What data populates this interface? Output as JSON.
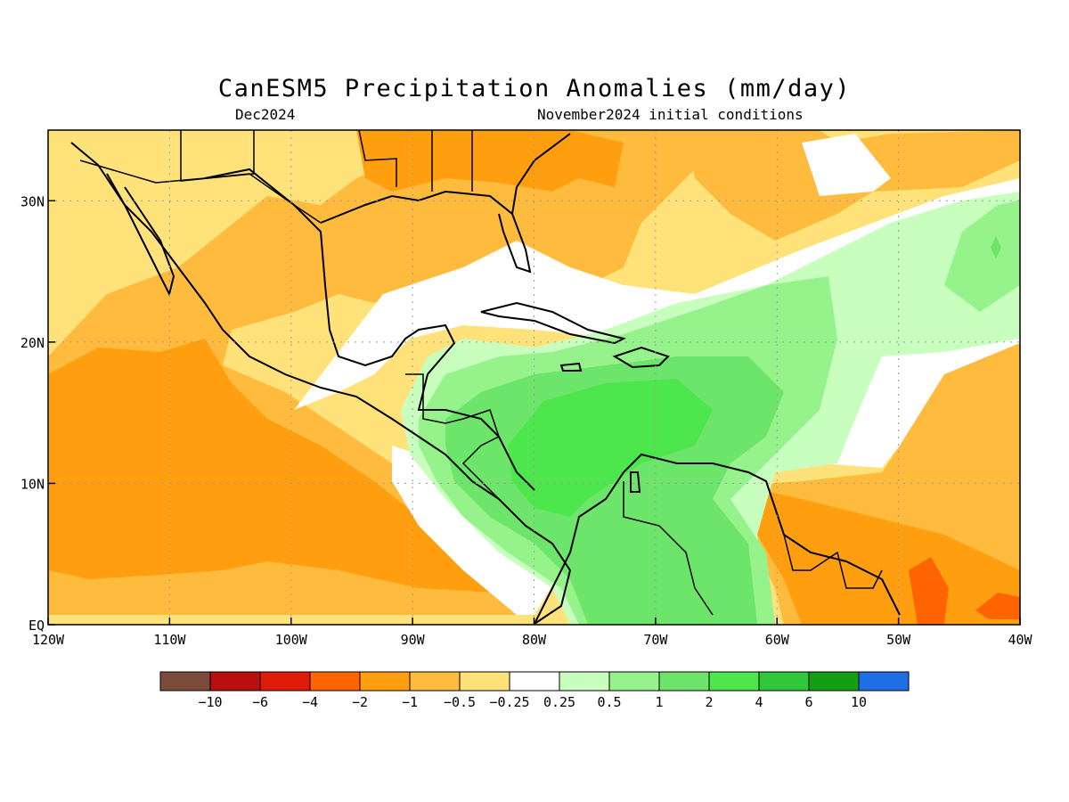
{
  "title": "CanESM5 Precipitation Anomalies (mm/day)",
  "subtitle_left": "Dec2024",
  "subtitle_right": "November2024 initial conditions",
  "map": {
    "lon_range": [
      -120,
      -40
    ],
    "lat_range": [
      0,
      35
    ],
    "lon_ticks": [
      {
        "value": -120,
        "label": "120W"
      },
      {
        "value": -110,
        "label": "110W"
      },
      {
        "value": -100,
        "label": "100W"
      },
      {
        "value": -90,
        "label": "90W"
      },
      {
        "value": -80,
        "label": "80W"
      },
      {
        "value": -70,
        "label": "70W"
      },
      {
        "value": -60,
        "label": "60W"
      },
      {
        "value": -50,
        "label": "50W"
      },
      {
        "value": -40,
        "label": "40W"
      }
    ],
    "lat_ticks": [
      {
        "value": 0,
        "label": "EQ"
      },
      {
        "value": 10,
        "label": "10N"
      },
      {
        "value": 20,
        "label": "20N"
      },
      {
        "value": 30,
        "label": "30N"
      }
    ],
    "grid": true
  },
  "colorbar": {
    "colors": [
      "#7a4a3a",
      "#b90f0f",
      "#e01b0a",
      "#ff6400",
      "#ff9f0f",
      "#ffbb3d",
      "#ffe27a",
      "#ffffff",
      "#c8ffbe",
      "#96f28a",
      "#6de56a",
      "#4ee64d",
      "#31c73a",
      "#139e14",
      "#1e6ee6"
    ],
    "labels": [
      "−10",
      "−6",
      "−4",
      "−2",
      "−1",
      "−0.5",
      "−0.25",
      "0.25",
      "0.5",
      "1",
      "2",
      "4",
      "6",
      "10"
    ]
  },
  "regions": [
    {
      "name": "warm-pool-east-pacific",
      "level": "-1",
      "color": "#ffbb3d"
    },
    {
      "name": "dry-core-pacific",
      "level": "-2",
      "color": "#ff9f0f"
    },
    {
      "name": "caribbean-wet",
      "level": "1",
      "color": "#96f28a"
    },
    {
      "name": "caribbean-core-wet",
      "level": "2",
      "color": "#6de56a"
    },
    {
      "name": "caribbean-max-wet",
      "level": "4",
      "color": "#4ee64d"
    },
    {
      "name": "guiana-dry",
      "level": "-4",
      "color": "#ff6400"
    }
  ]
}
